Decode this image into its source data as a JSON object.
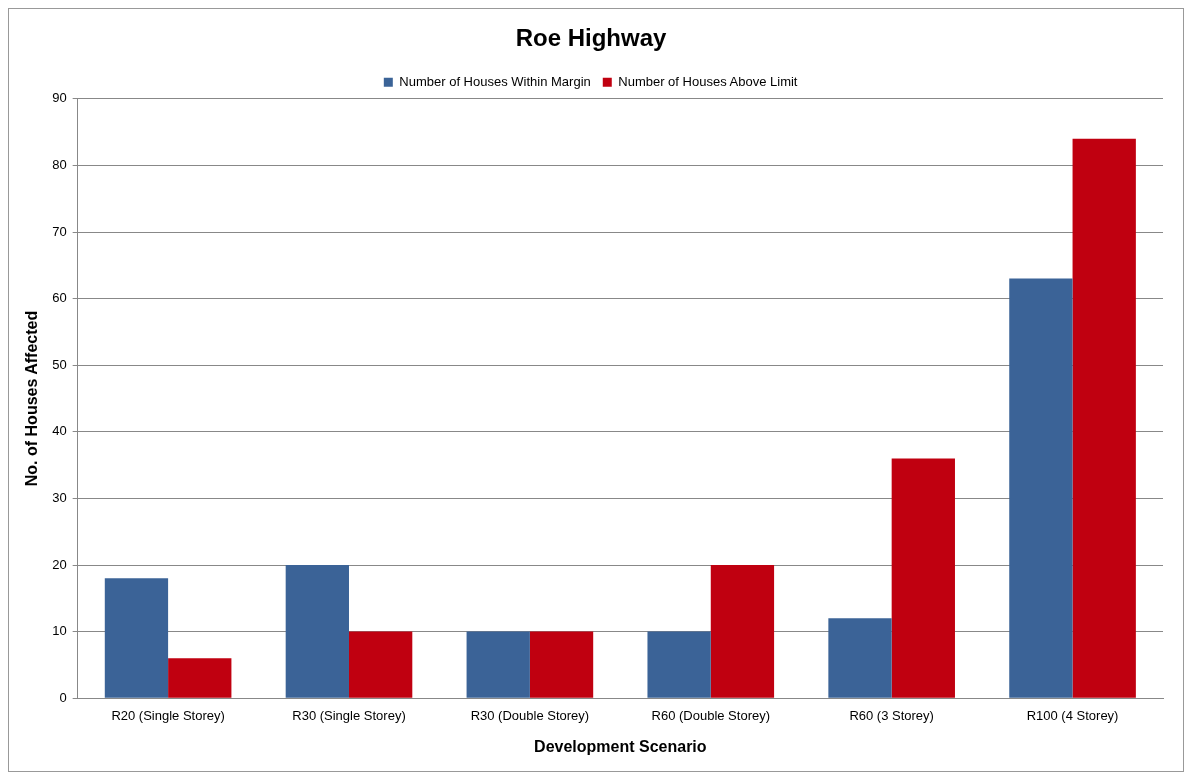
{
  "chart_data": {
    "type": "bar",
    "title": "Roe Highway",
    "xlabel": "Development Scenario",
    "ylabel": "No. of Houses Affected",
    "categories": [
      "R20 (Single Storey)",
      "R30 (Single Storey)",
      "R30 (Double Storey)",
      "R60 (Double Storey)",
      "R60 (3 Storey)",
      "R100 (4 Storey)"
    ],
    "series": [
      {
        "name": "Number of Houses Within Margin",
        "color": "#3b6397",
        "values": [
          18,
          20,
          10,
          10,
          12,
          63
        ]
      },
      {
        "name": "Number of Houses Above Limit",
        "color": "#c00010",
        "values": [
          6,
          10,
          10,
          20,
          36,
          84
        ]
      }
    ],
    "ylim": [
      0,
      90
    ],
    "yticks": [
      0,
      10,
      20,
      30,
      40,
      50,
      60,
      70,
      80,
      90
    ],
    "grid": "y",
    "legend": "top"
  }
}
